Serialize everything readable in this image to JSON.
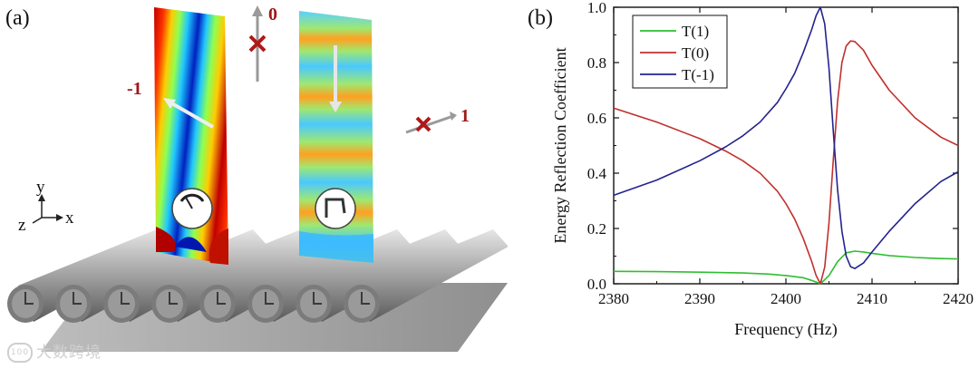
{
  "panel_a": {
    "label": "(a)",
    "order_left": "-1",
    "order_top": "0",
    "order_right": "1",
    "axis_y": "y",
    "axis_z": "z",
    "axis_x": "x"
  },
  "panel_b": {
    "label": "(b)"
  },
  "chart_data": {
    "type": "line",
    "xlabel": "Frequency (Hz)",
    "ylabel": "Energy Reflection Coefficient",
    "xlim": [
      2380,
      2420
    ],
    "ylim": [
      0.0,
      1.0
    ],
    "xticks": [
      2380,
      2390,
      2400,
      2410,
      2420
    ],
    "yticks": [
      0.0,
      0.2,
      0.4,
      0.6,
      0.8,
      1.0
    ],
    "xtick_labels": [
      "2380",
      "2390",
      "2400",
      "2410",
      "2420"
    ],
    "ytick_labels": [
      "0.0",
      "0.2",
      "0.4",
      "0.6",
      "0.8",
      "1.0"
    ],
    "legend_position": "top-left",
    "series": [
      {
        "name": "T(1)",
        "color": "#2fbf2f",
        "x": [
          2380,
          2385,
          2390,
          2395,
          2398,
          2400,
          2402,
          2403,
          2404,
          2405,
          2406,
          2407,
          2408,
          2409,
          2410,
          2412,
          2415,
          2418,
          2420
        ],
        "y": [
          0.045,
          0.044,
          0.042,
          0.039,
          0.035,
          0.03,
          0.022,
          0.012,
          0.0,
          0.03,
          0.08,
          0.112,
          0.118,
          0.115,
          0.11,
          0.102,
          0.095,
          0.091,
          0.09
        ]
      },
      {
        "name": "T(0)",
        "color": "#c0302e",
        "x": [
          2380,
          2385,
          2390,
          2393,
          2395,
          2397,
          2399,
          2400,
          2401,
          2402,
          2403,
          2403.5,
          2404,
          2404.5,
          2405,
          2405.5,
          2406,
          2406.5,
          2407,
          2407.5,
          2408,
          2409,
          2410,
          2412,
          2415,
          2418,
          2420
        ],
        "y": [
          0.635,
          0.585,
          0.525,
          0.48,
          0.445,
          0.4,
          0.335,
          0.29,
          0.235,
          0.165,
          0.08,
          0.03,
          0.0,
          0.06,
          0.22,
          0.45,
          0.66,
          0.8,
          0.86,
          0.878,
          0.876,
          0.845,
          0.79,
          0.7,
          0.6,
          0.53,
          0.5
        ]
      },
      {
        "name": "T(-1)",
        "color": "#23238e",
        "x": [
          2380,
          2385,
          2390,
          2393,
          2395,
          2397,
          2399,
          2400,
          2401,
          2402,
          2403,
          2403.5,
          2404,
          2404.5,
          2405,
          2405.5,
          2406,
          2406.5,
          2407,
          2407.5,
          2408,
          2409,
          2410,
          2412,
          2415,
          2418,
          2420
        ],
        "y": [
          0.32,
          0.375,
          0.445,
          0.495,
          0.535,
          0.585,
          0.655,
          0.705,
          0.76,
          0.835,
          0.92,
          0.97,
          1.0,
          0.94,
          0.78,
          0.55,
          0.34,
          0.19,
          0.1,
          0.062,
          0.055,
          0.075,
          0.115,
          0.19,
          0.29,
          0.37,
          0.405
        ]
      }
    ]
  },
  "watermark": {
    "bubble": "100",
    "text": "大数跨境"
  }
}
